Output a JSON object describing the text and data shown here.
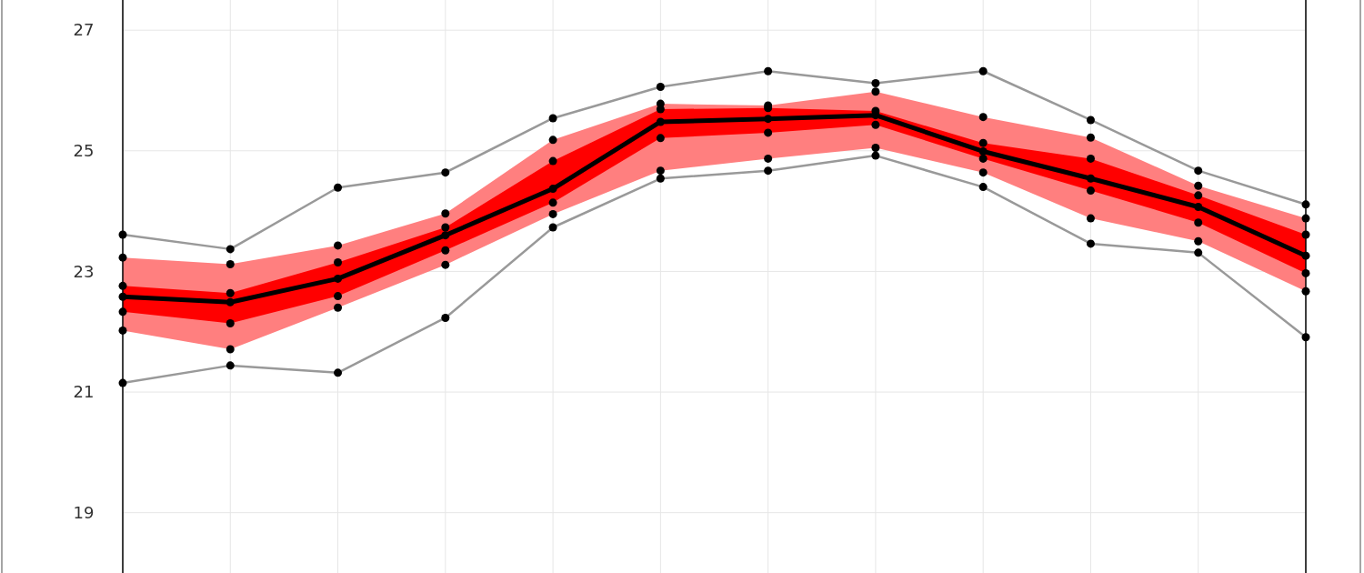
{
  "chart_data": {
    "type": "line",
    "categories": [
      null,
      null,
      null,
      null,
      null,
      null,
      null,
      null,
      null,
      null,
      null,
      null
    ],
    "ylim": [
      18,
      27.5
    ],
    "yticks": [
      19,
      21,
      23,
      25,
      27
    ],
    "grid": true,
    "marker": "circle",
    "series": [
      {
        "type": "area",
        "color": "#ff7f7f",
        "lower": [
          22.02,
          21.71,
          22.4,
          23.11,
          23.95,
          24.67,
          24.87,
          25.05,
          24.64,
          23.88,
          23.5,
          22.67
        ],
        "upper": [
          23.23,
          23.12,
          23.43,
          23.96,
          25.18,
          25.78,
          25.75,
          25.98,
          25.56,
          25.22,
          24.42,
          23.88
        ],
        "values": [
          null,
          null,
          null,
          null,
          null,
          null,
          null,
          null,
          null,
          null,
          null,
          null
        ]
      },
      {
        "type": "area",
        "color": "#ff0000",
        "lower": [
          22.33,
          22.14,
          22.59,
          23.35,
          24.14,
          25.21,
          25.3,
          25.43,
          24.87,
          24.34,
          23.81,
          22.97
        ],
        "upper": [
          22.76,
          22.64,
          23.15,
          23.73,
          24.83,
          25.69,
          25.71,
          25.66,
          25.13,
          24.87,
          24.26,
          23.61
        ],
        "values": [
          null,
          null,
          null,
          null,
          null,
          null,
          null,
          null,
          null,
          null,
          null,
          null
        ]
      },
      {
        "color": "#999999",
        "values": [
          23.61,
          23.37,
          24.39,
          24.64,
          25.54,
          26.06,
          26.32,
          26.12,
          26.32,
          25.51,
          24.67,
          24.11
        ]
      },
      {
        "color": "#999999",
        "values": [
          21.15,
          21.44,
          21.32,
          22.23,
          23.73,
          24.54,
          24.67,
          24.92,
          24.4,
          23.46,
          23.31,
          21.91
        ]
      },
      {
        "color": "#000000",
        "values": [
          22.58,
          22.49,
          22.88,
          23.6,
          24.37,
          25.48,
          25.53,
          25.59,
          24.99,
          24.54,
          24.07,
          23.26
        ]
      },
      {
        "type": "scatter",
        "color": "#000000",
        "values": [
          22.02,
          21.71,
          22.4,
          23.11,
          23.95,
          24.67,
          24.87,
          25.05,
          24.64,
          23.88,
          23.5,
          22.67
        ]
      },
      {
        "type": "scatter",
        "color": "#000000",
        "values": [
          23.23,
          23.12,
          23.43,
          23.96,
          25.18,
          25.78,
          25.75,
          25.98,
          25.56,
          25.22,
          24.42,
          23.88
        ]
      },
      {
        "type": "scatter",
        "color": "#000000",
        "values": [
          22.33,
          22.14,
          22.59,
          23.35,
          24.14,
          25.21,
          25.3,
          25.43,
          24.87,
          24.34,
          23.81,
          22.97
        ]
      },
      {
        "type": "scatter",
        "color": "#000000",
        "values": [
          22.76,
          22.64,
          23.15,
          23.73,
          24.83,
          25.69,
          25.71,
          25.66,
          25.13,
          24.87,
          24.26,
          23.61
        ]
      }
    ]
  }
}
